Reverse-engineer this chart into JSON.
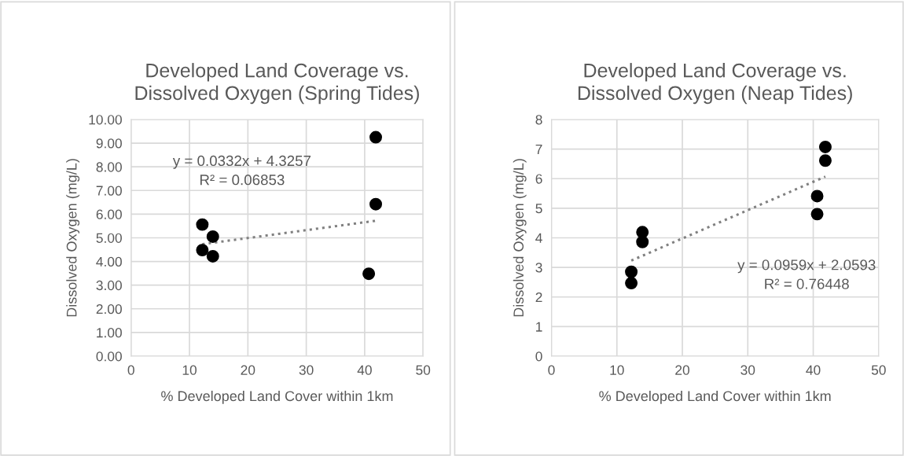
{
  "chart_data": [
    {
      "type": "scatter",
      "title": "Developed Land Coverage vs.\nDissolved Oxygen (Spring Tides)",
      "xlabel": "% Developed Land Cover within 1km",
      "ylabel": "Dissolved Oxygen (mg/L)",
      "x": [
        12.2,
        14.0,
        12.2,
        14.0,
        40.7,
        41.9,
        41.9
      ],
      "series": [
        {
          "color": "#000000",
          "values": [
            5.56,
            5.05,
            4.48,
            4.22,
            3.48,
            9.25,
            6.42
          ]
        },
        {
          "type": "line",
          "color": "#808080",
          "line_style": "dotted",
          "marker": "none",
          "x": [
            12.2,
            41.9
          ],
          "values": [
            4.73,
            5.72
          ]
        }
      ],
      "annotations": [
        "y = 0.0332x + 4.3257\nR² = 0.06853"
      ],
      "xlim": [
        0,
        50
      ],
      "xticks": [
        0,
        10,
        20,
        30,
        40,
        50
      ],
      "ylim": [
        0,
        10
      ],
      "yticks": [
        {
          "value": 0,
          "label": "0.00"
        },
        {
          "value": 1,
          "label": "1.00"
        },
        {
          "value": 2,
          "label": "2.00"
        },
        {
          "value": 3,
          "label": "3.00"
        },
        {
          "value": 4,
          "label": "4.00"
        },
        {
          "value": 5,
          "label": "5.00"
        },
        {
          "value": 6,
          "label": "6.00"
        },
        {
          "value": 7,
          "label": "7.00"
        },
        {
          "value": 8,
          "label": "8.00"
        },
        {
          "value": 9,
          "label": "9.00"
        },
        {
          "value": 10,
          "label": "10.00"
        }
      ],
      "grid": true,
      "marker": "circle"
    },
    {
      "type": "scatter",
      "title": "Developed Land Coverage vs.\nDissolved Oxygen (Neap Tides)",
      "xlabel": "% Developed Land Cover within 1km",
      "ylabel": "Dissolved Oxygen (mg/L)",
      "x": [
        12.2,
        12.2,
        13.9,
        13.9,
        40.6,
        40.6,
        41.85,
        41.85
      ],
      "series": [
        {
          "color": "#000000",
          "values": [
            2.85,
            2.47,
            4.19,
            3.86,
            5.41,
            4.8,
            7.07,
            6.61
          ]
        },
        {
          "type": "line",
          "color": "#808080",
          "line_style": "dotted",
          "marker": "none",
          "x": [
            12.2,
            41.85
          ],
          "values": [
            3.23,
            6.07
          ]
        }
      ],
      "annotations": [
        "y = 0.0959x + 2.0593\nR² = 0.76448"
      ],
      "xlim": [
        0,
        50
      ],
      "xticks": [
        0,
        10,
        20,
        30,
        40,
        50
      ],
      "ylim": [
        0,
        8
      ],
      "yticks": [
        0,
        1,
        2,
        3,
        4,
        5,
        6,
        7,
        8
      ],
      "grid": true,
      "marker": "circle"
    }
  ]
}
